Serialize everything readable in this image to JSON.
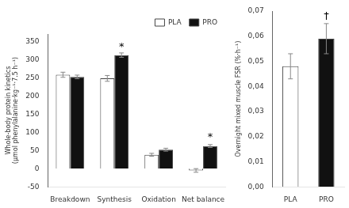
{
  "chart_data": [
    {
      "type": "bar",
      "categories": [
        "Breakdown",
        "Synthesis",
        "Oxidation",
        "Net balance"
      ],
      "series": [
        {
          "name": "PLA",
          "color": "#ffffff",
          "values": [
            258,
            248,
            38,
            -5
          ],
          "errors": [
            7,
            8,
            4,
            5
          ]
        },
        {
          "name": "PRO",
          "color": "#111111",
          "values": [
            252,
            312,
            52,
            62
          ],
          "errors": [
            5,
            6,
            4,
            4
          ]
        }
      ],
      "y_label": "Whole-body protein kinetics\n(μmol phenylalanine·kg⁻¹·7.5 h⁻¹)",
      "ylim": [
        -50,
        370
      ],
      "yticks": [
        -50,
        0,
        50,
        100,
        150,
        200,
        250,
        300,
        350
      ],
      "annotations": [
        {
          "text": "*",
          "category": "Synthesis",
          "series": "PRO",
          "y": 320
        },
        {
          "text": "*",
          "category": "Net balance",
          "series": "PRO",
          "y": 72
        }
      ],
      "legend": "upper right",
      "grid": false
    },
    {
      "type": "bar",
      "categories": [
        "PLA",
        "PRO"
      ],
      "values": [
        0.048,
        0.059
      ],
      "errors": [
        0.005,
        0.006
      ],
      "colors": [
        "#ffffff",
        "#111111"
      ],
      "y_label": "Overnight mixed muscle FSR (%·h⁻¹)",
      "ylim": [
        0.0,
        0.07
      ],
      "yticks": [
        {
          "value": 0.0,
          "label": "0,00"
        },
        {
          "value": 0.01,
          "label": "0,01"
        },
        {
          "value": 0.02,
          "label": "0,02"
        },
        {
          "value": 0.03,
          "label": "0,03"
        },
        {
          "value": 0.04,
          "label": "0,04"
        },
        {
          "value": 0.05,
          "label": "0,05"
        },
        {
          "value": 0.06,
          "label": "0,06"
        },
        {
          "value": 0.07,
          "label": "0,07"
        }
      ],
      "annotations": [
        {
          "text": "†",
          "category": "PRO",
          "y": 0.066
        }
      ],
      "grid": false
    }
  ]
}
